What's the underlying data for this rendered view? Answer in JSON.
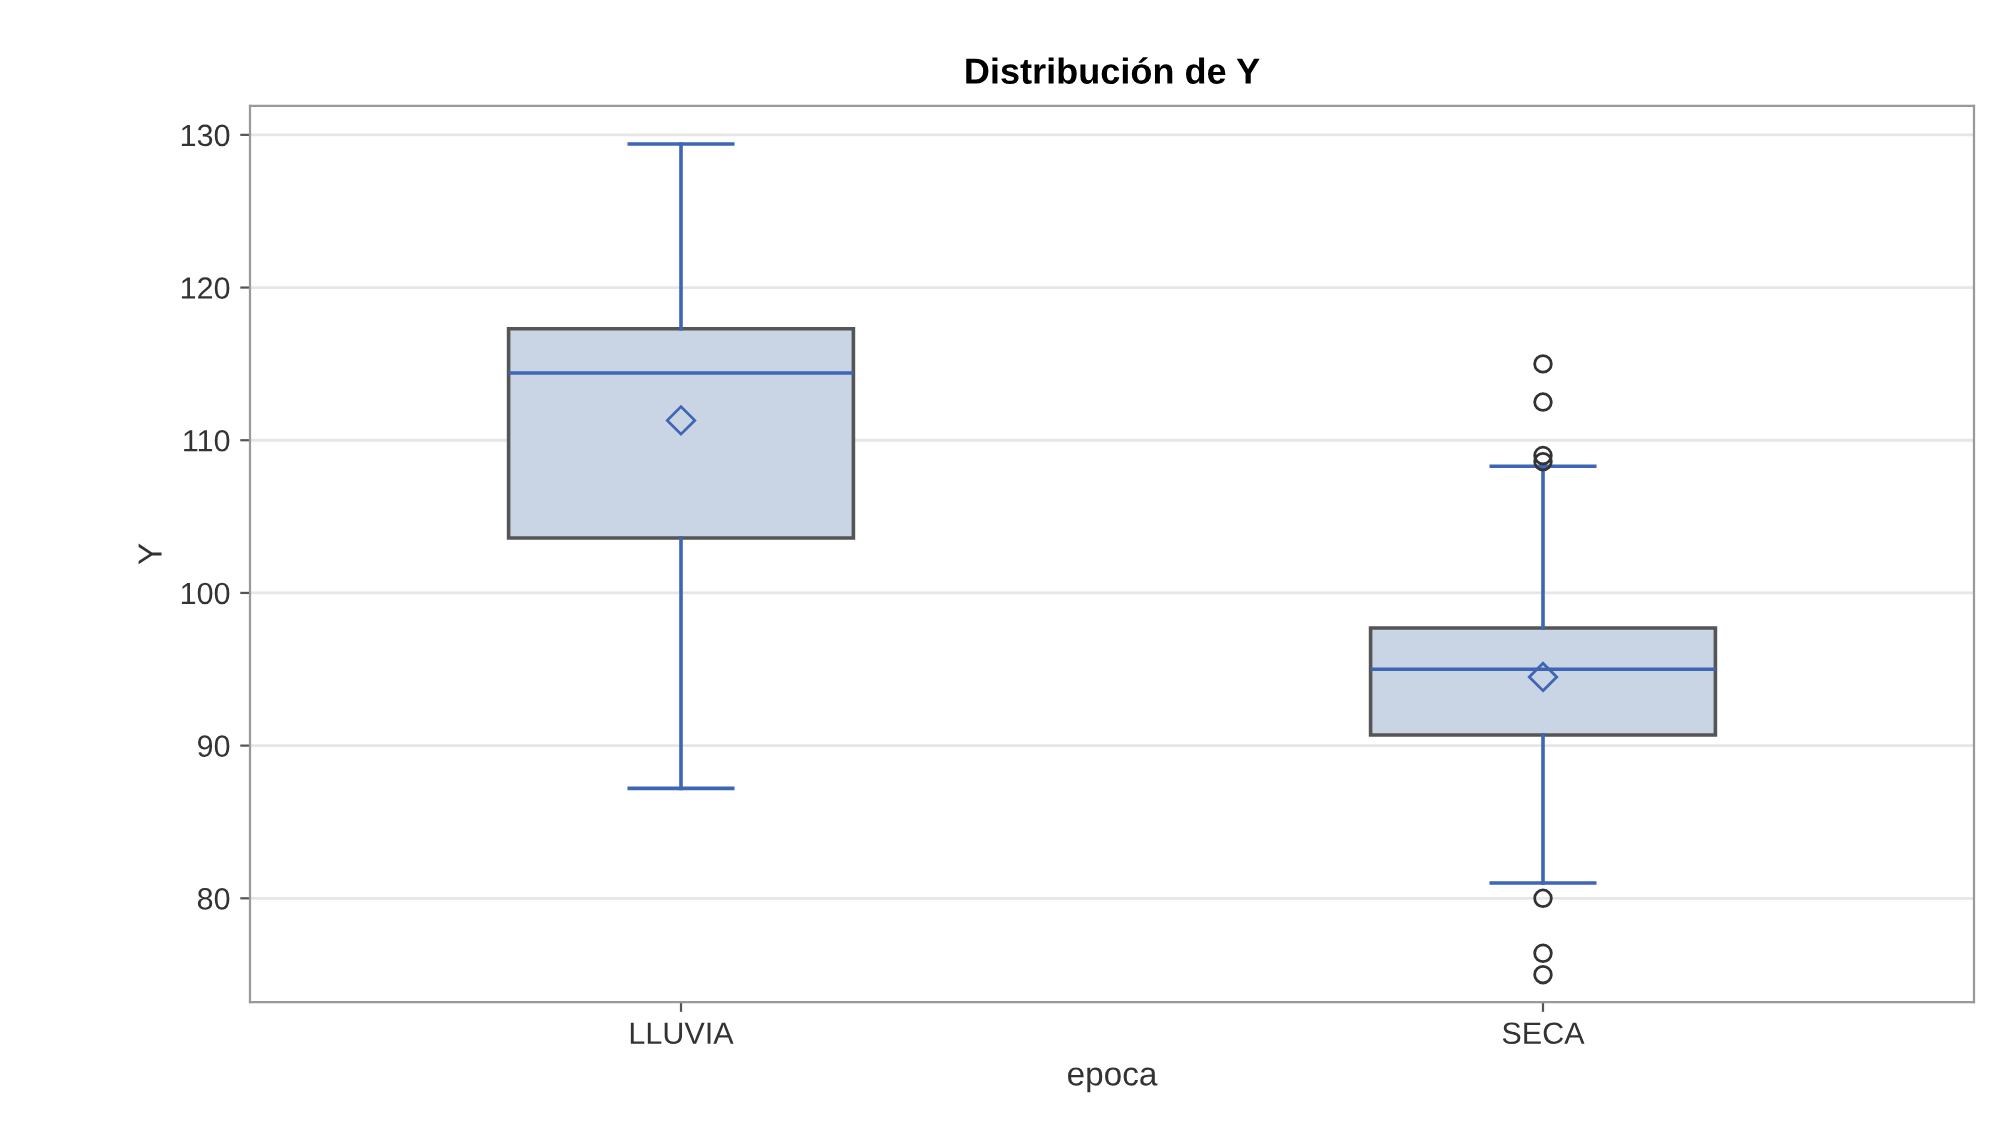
{
  "chart_data": {
    "type": "box",
    "title": "Distribución de Y",
    "xlabel": "epoca",
    "ylabel": "Y",
    "categories": [
      "LLUVIA",
      "SECA"
    ],
    "boxes": [
      {
        "low": 87.2,
        "q1": 103.6,
        "median": 114.4,
        "q3": 117.3,
        "high": 129.4,
        "mean": 111.3
      },
      {
        "low": 81.0,
        "q1": 90.7,
        "median": 95.0,
        "q3": 97.7,
        "high": 108.3,
        "mean": 94.5,
        "outliers": [
          115.0,
          112.5,
          109.0,
          108.6,
          80.0,
          76.4,
          75.0
        ]
      }
    ],
    "color": "#c9d5e5",
    "ylim": [
      73.2,
      131.9
    ],
    "yticks": [
      80,
      90,
      100,
      110,
      120,
      130
    ],
    "grid": "y",
    "legend": false
  }
}
